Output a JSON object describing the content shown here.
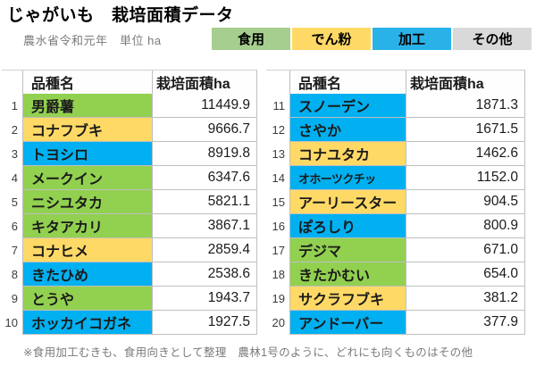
{
  "title": "じゃがいも　栽培面積データ",
  "subtitle": "農水省令和元年　単位 ha",
  "footnote": "※食用加工むきも、食用向きとして整理　農林1号のように、どれにも向くものはその他",
  "legend": {
    "items": [
      {
        "key": "food",
        "label": "食用",
        "color": "#a6ce8e"
      },
      {
        "key": "starch",
        "label": "でん粉",
        "color": "#ffd966"
      },
      {
        "key": "processing",
        "label": "加工",
        "color": "#29b2e8"
      },
      {
        "key": "other",
        "label": "その他",
        "color": "#d9d9d9"
      }
    ]
  },
  "colors": {
    "food": "#92d050",
    "starch": "#ffd966",
    "processing": "#00b0f0",
    "other": "#d9d9d9",
    "grid": "#bfbfbf"
  },
  "table": {
    "headers": {
      "name": "品種名",
      "area": "栽培面積ha"
    }
  },
  "left_rows": [
    {
      "rank": "1",
      "name": "男爵薯",
      "value": "11449.9",
      "category": "food"
    },
    {
      "rank": "2",
      "name": "コナフブキ",
      "value": "9666.7",
      "category": "starch"
    },
    {
      "rank": "3",
      "name": "トヨシロ",
      "value": "8919.8",
      "category": "processing"
    },
    {
      "rank": "4",
      "name": "メークイン",
      "value": "6347.6",
      "category": "food"
    },
    {
      "rank": "5",
      "name": "ニシユタカ",
      "value": "5821.1",
      "category": "food"
    },
    {
      "rank": "6",
      "name": "キタアカリ",
      "value": "3867.1",
      "category": "food"
    },
    {
      "rank": "7",
      "name": "コナヒメ",
      "value": "2859.4",
      "category": "starch"
    },
    {
      "rank": "8",
      "name": "きたひめ",
      "value": "2538.6",
      "category": "processing"
    },
    {
      "rank": "9",
      "name": "とうや",
      "value": "1943.7",
      "category": "food"
    },
    {
      "rank": "10",
      "name": "ホッカイコガネ",
      "value": "1927.5",
      "category": "processing"
    }
  ],
  "right_rows": [
    {
      "rank": "11",
      "name": "スノーデン",
      "value": "1871.3",
      "category": "processing"
    },
    {
      "rank": "12",
      "name": "さやか",
      "value": "1671.5",
      "category": "processing"
    },
    {
      "rank": "13",
      "name": "コナユタカ",
      "value": "1462.6",
      "category": "starch"
    },
    {
      "rank": "14",
      "name": "オホーツクチッ",
      "value": "1152.0",
      "category": "processing",
      "compact": true
    },
    {
      "rank": "15",
      "name": "アーリースター",
      "value": "904.5",
      "category": "starch"
    },
    {
      "rank": "16",
      "name": "ぽろしり",
      "value": "800.9",
      "category": "processing"
    },
    {
      "rank": "17",
      "name": "デジマ",
      "value": "671.0",
      "category": "food"
    },
    {
      "rank": "18",
      "name": "きたかむい",
      "value": "654.0",
      "category": "food"
    },
    {
      "rank": "19",
      "name": "サクラフブキ",
      "value": "381.2",
      "category": "starch"
    },
    {
      "rank": "20",
      "name": "アンドーバー",
      "value": "377.9",
      "category": "processing"
    }
  ],
  "chart_data": {
    "type": "table",
    "title": "じゃがいも　栽培面積データ",
    "subtitle": "農水省令和元年　単位 ha",
    "columns": [
      "品種名",
      "栽培面積ha"
    ],
    "legend": [
      "食用",
      "でん粉",
      "加工",
      "その他"
    ],
    "rows": [
      [
        1,
        "男爵薯",
        11449.9,
        "食用"
      ],
      [
        2,
        "コナフブキ",
        9666.7,
        "でん粉"
      ],
      [
        3,
        "トヨシロ",
        8919.8,
        "加工"
      ],
      [
        4,
        "メークイン",
        6347.6,
        "食用"
      ],
      [
        5,
        "ニシユタカ",
        5821.1,
        "食用"
      ],
      [
        6,
        "キタアカリ",
        3867.1,
        "食用"
      ],
      [
        7,
        "コナヒメ",
        2859.4,
        "でん粉"
      ],
      [
        8,
        "きたひめ",
        2538.6,
        "加工"
      ],
      [
        9,
        "とうや",
        1943.7,
        "食用"
      ],
      [
        10,
        "ホッカイコガネ",
        1927.5,
        "加工"
      ],
      [
        11,
        "スノーデン",
        1871.3,
        "加工"
      ],
      [
        12,
        "さやか",
        1671.5,
        "加工"
      ],
      [
        13,
        "コナユタカ",
        1462.6,
        "でん粉"
      ],
      [
        14,
        "オホーツクチッ",
        1152.0,
        "加工"
      ],
      [
        15,
        "アーリースター",
        904.5,
        "でん粉"
      ],
      [
        16,
        "ぽろしり",
        800.9,
        "加工"
      ],
      [
        17,
        "デジマ",
        671.0,
        "食用"
      ],
      [
        18,
        "きたかむい",
        654.0,
        "食用"
      ],
      [
        19,
        "サクラフブキ",
        381.2,
        "でん粉"
      ],
      [
        20,
        "アンドーバー",
        377.9,
        "加工"
      ]
    ],
    "footnote": "※食用加工むきも、食用向きとして整理　農林1号のように、どれにも向くものはその他"
  }
}
